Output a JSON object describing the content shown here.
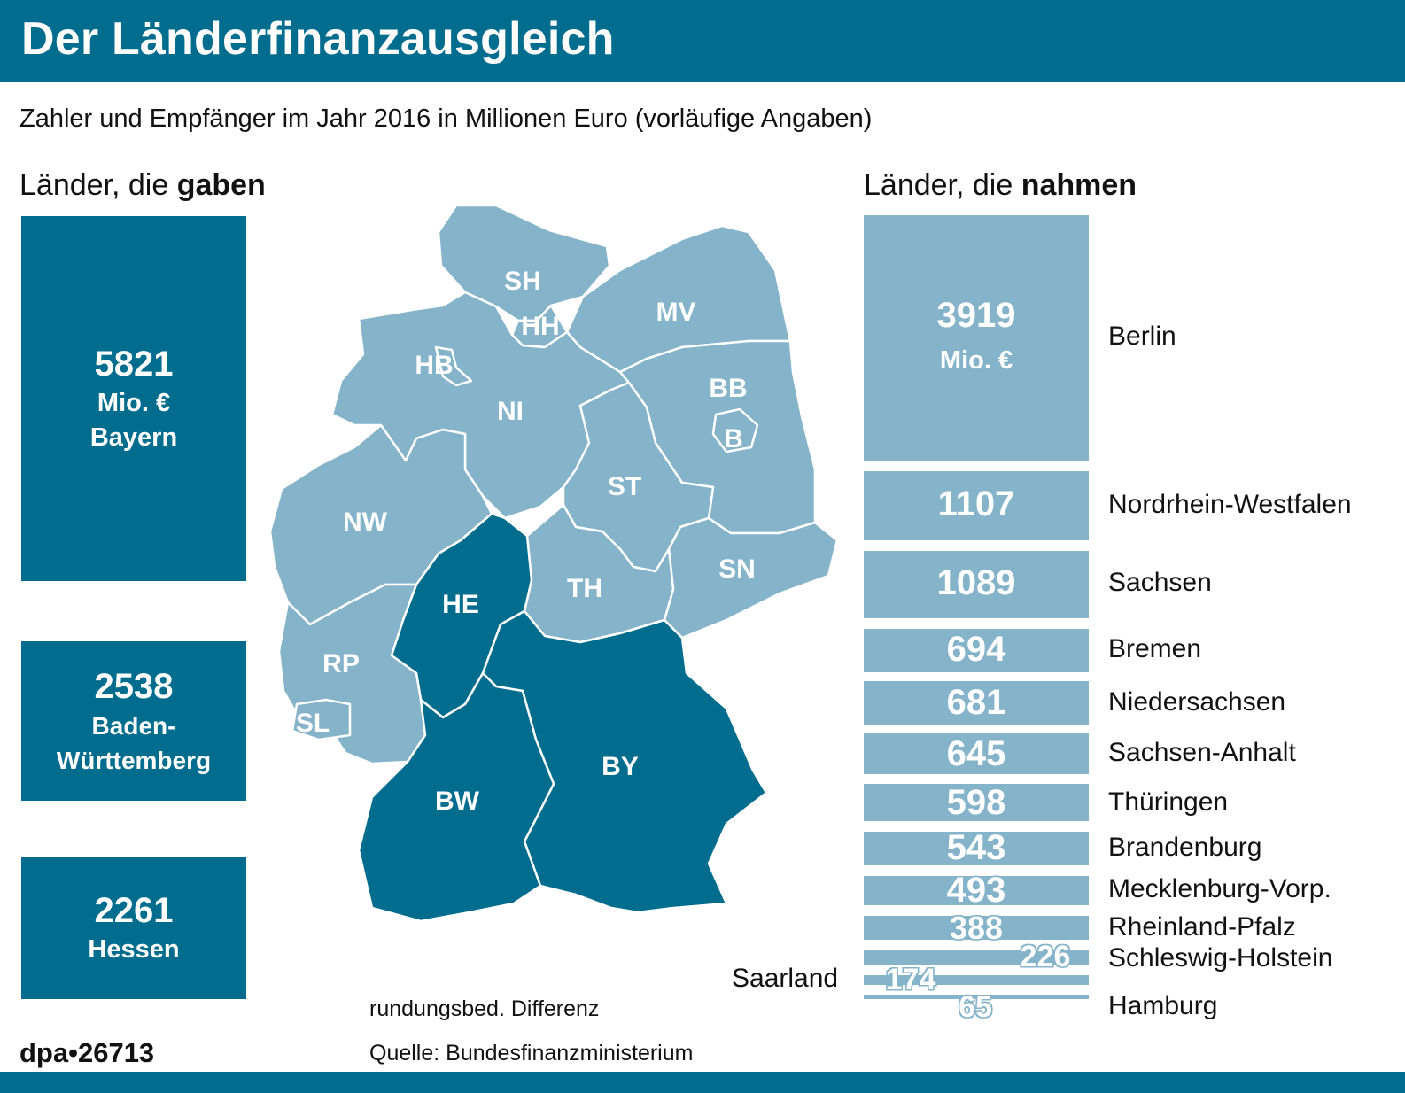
{
  "header": {
    "title": "Der Länderfinanzausgleich"
  },
  "subtitle": "Zahler und Empfänger im Jahr 2016 in Millionen Euro (vorläufige Angaben)",
  "givers_heading": {
    "prefix": "Länder, die ",
    "bold": "gaben"
  },
  "receivers_heading": {
    "prefix": "Länder, die ",
    "bold": "nahmen"
  },
  "unit_label": "Mio. €",
  "map_labels": {
    "SH": "SH",
    "HH": "HH",
    "MV": "MV",
    "HB": "HB",
    "NI": "NI",
    "BB": "BB",
    "B": "B",
    "ST": "ST",
    "NW": "NW",
    "SN": "SN",
    "HE": "HE",
    "TH": "TH",
    "RP": "RP",
    "SL": "SL",
    "BY": "BY",
    "BW": "BW"
  },
  "colors": {
    "giver": "#006c8e",
    "receiver": "#84b3ca"
  },
  "footnotes": {
    "rounding": "rundungsbed. Differenz",
    "source": "Quelle: Bundesfinanzministerium",
    "credit": "dpa•26713"
  },
  "chart_data": {
    "type": "bar",
    "givers": [
      {
        "name": "Bayern",
        "value": 5821
      },
      {
        "name": "Baden-Württemberg",
        "value": 2538
      },
      {
        "name": "Hessen",
        "value": 2261
      }
    ],
    "receivers": [
      {
        "name": "Berlin",
        "value": 3919
      },
      {
        "name": "Nordrhein-Westfalen",
        "value": 1107
      },
      {
        "name": "Sachsen",
        "value": 1089
      },
      {
        "name": "Bremen",
        "value": 694
      },
      {
        "name": "Niedersachsen",
        "value": 681
      },
      {
        "name": "Sachsen-Anhalt",
        "value": 645
      },
      {
        "name": "Thüringen",
        "value": 598
      },
      {
        "name": "Brandenburg",
        "value": 543
      },
      {
        "name": "Mecklenburg-Vorp.",
        "value": 493
      },
      {
        "name": "Rheinland-Pfalz",
        "value": 388
      },
      {
        "name": "Schleswig-Holstein",
        "value": 226
      },
      {
        "name": "Saarland",
        "value": 174
      },
      {
        "name": "Hamburg",
        "value": 65
      }
    ]
  }
}
